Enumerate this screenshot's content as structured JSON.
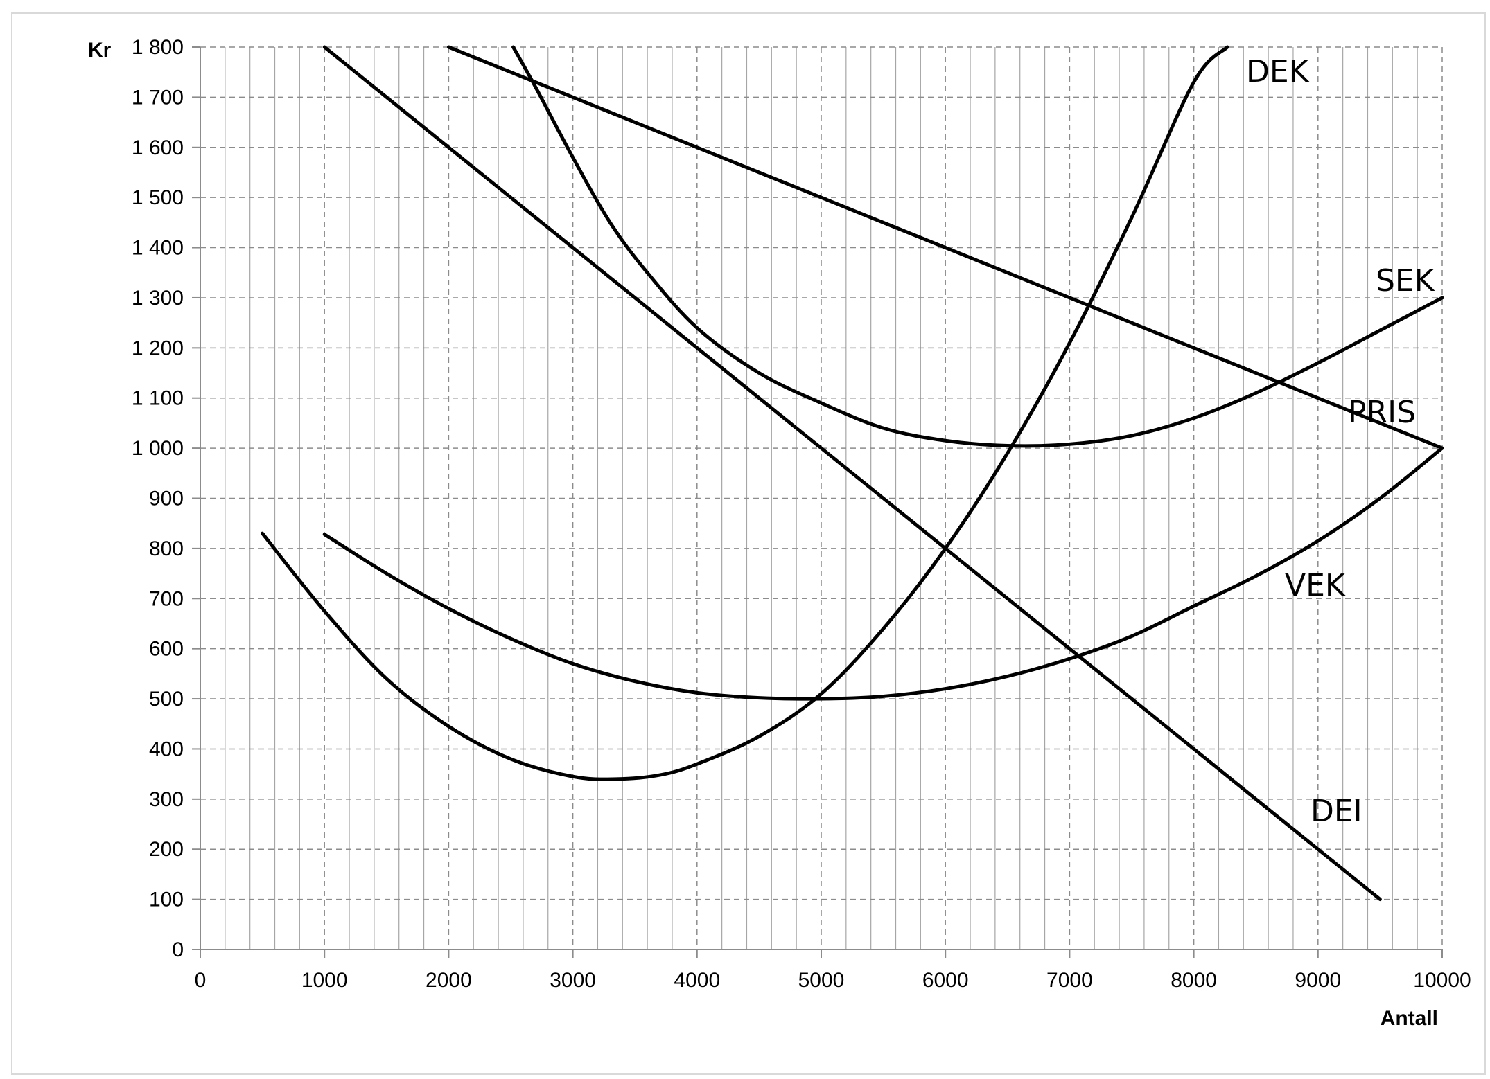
{
  "chart_data": {
    "type": "line",
    "title": "",
    "xlabel": "Antall",
    "ylabel": "Kr",
    "xlim": [
      0,
      10000
    ],
    "ylim": [
      0,
      1800
    ],
    "x_ticks": [
      "0",
      "1000",
      "2000",
      "3000",
      "4000",
      "5000",
      "6000",
      "7000",
      "8000",
      "9000",
      "10000"
    ],
    "y_ticks": [
      "0",
      "100",
      "200",
      "300",
      "400",
      "500",
      "600",
      "700",
      "800",
      "900",
      "1 000",
      "1 100",
      "1 200",
      "1 300",
      "1 400",
      "1 500",
      "1 600",
      "1 700",
      "1 800"
    ],
    "grid": true,
    "colors": {
      "line": "#000000",
      "grid": "#8c8c8c",
      "frame": "#d9d9d9"
    },
    "series": [
      {
        "name": "DEK",
        "x": [
          500,
          1000,
          1500,
          2000,
          2500,
          3000,
          3350,
          3700,
          4000,
          4500,
          5000,
          5500,
          6000,
          6500,
          7000,
          7500,
          8000,
          8270
        ],
        "y": [
          830,
          675,
          540,
          445,
          380,
          345,
          340,
          348,
          370,
          425,
          510,
          640,
          800,
          990,
          1210,
          1460,
          1730,
          1800
        ]
      },
      {
        "name": "SEK",
        "x": [
          2520,
          2700,
          3000,
          3300,
          3600,
          4000,
          4500,
          5000,
          5500,
          6000,
          6500,
          7000,
          7500,
          8000,
          8500,
          9000,
          9500,
          10000
        ],
        "y": [
          1800,
          1720,
          1580,
          1450,
          1350,
          1240,
          1150,
          1090,
          1040,
          1015,
          1005,
          1008,
          1025,
          1060,
          1110,
          1170,
          1235,
          1300
        ]
      },
      {
        "name": "PRIS",
        "x": [
          2000,
          10000
        ],
        "y": [
          1800,
          1000
        ]
      },
      {
        "name": "VEK",
        "x": [
          1000,
          1500,
          2000,
          2500,
          3000,
          3500,
          4000,
          4500,
          5000,
          5500,
          6000,
          6500,
          7000,
          7500,
          8000,
          8500,
          9000,
          9500,
          10000
        ],
        "y": [
          828,
          750,
          680,
          620,
          570,
          535,
          512,
          502,
          500,
          505,
          520,
          545,
          580,
          625,
          685,
          745,
          815,
          900,
          1000
        ]
      },
      {
        "name": "DEI",
        "x": [
          1000,
          9500
        ],
        "y": [
          1800,
          100
        ]
      }
    ],
    "series_labels": [
      "DEK",
      "SEK",
      "PRIS",
      "VEK",
      "DEI"
    ]
  }
}
